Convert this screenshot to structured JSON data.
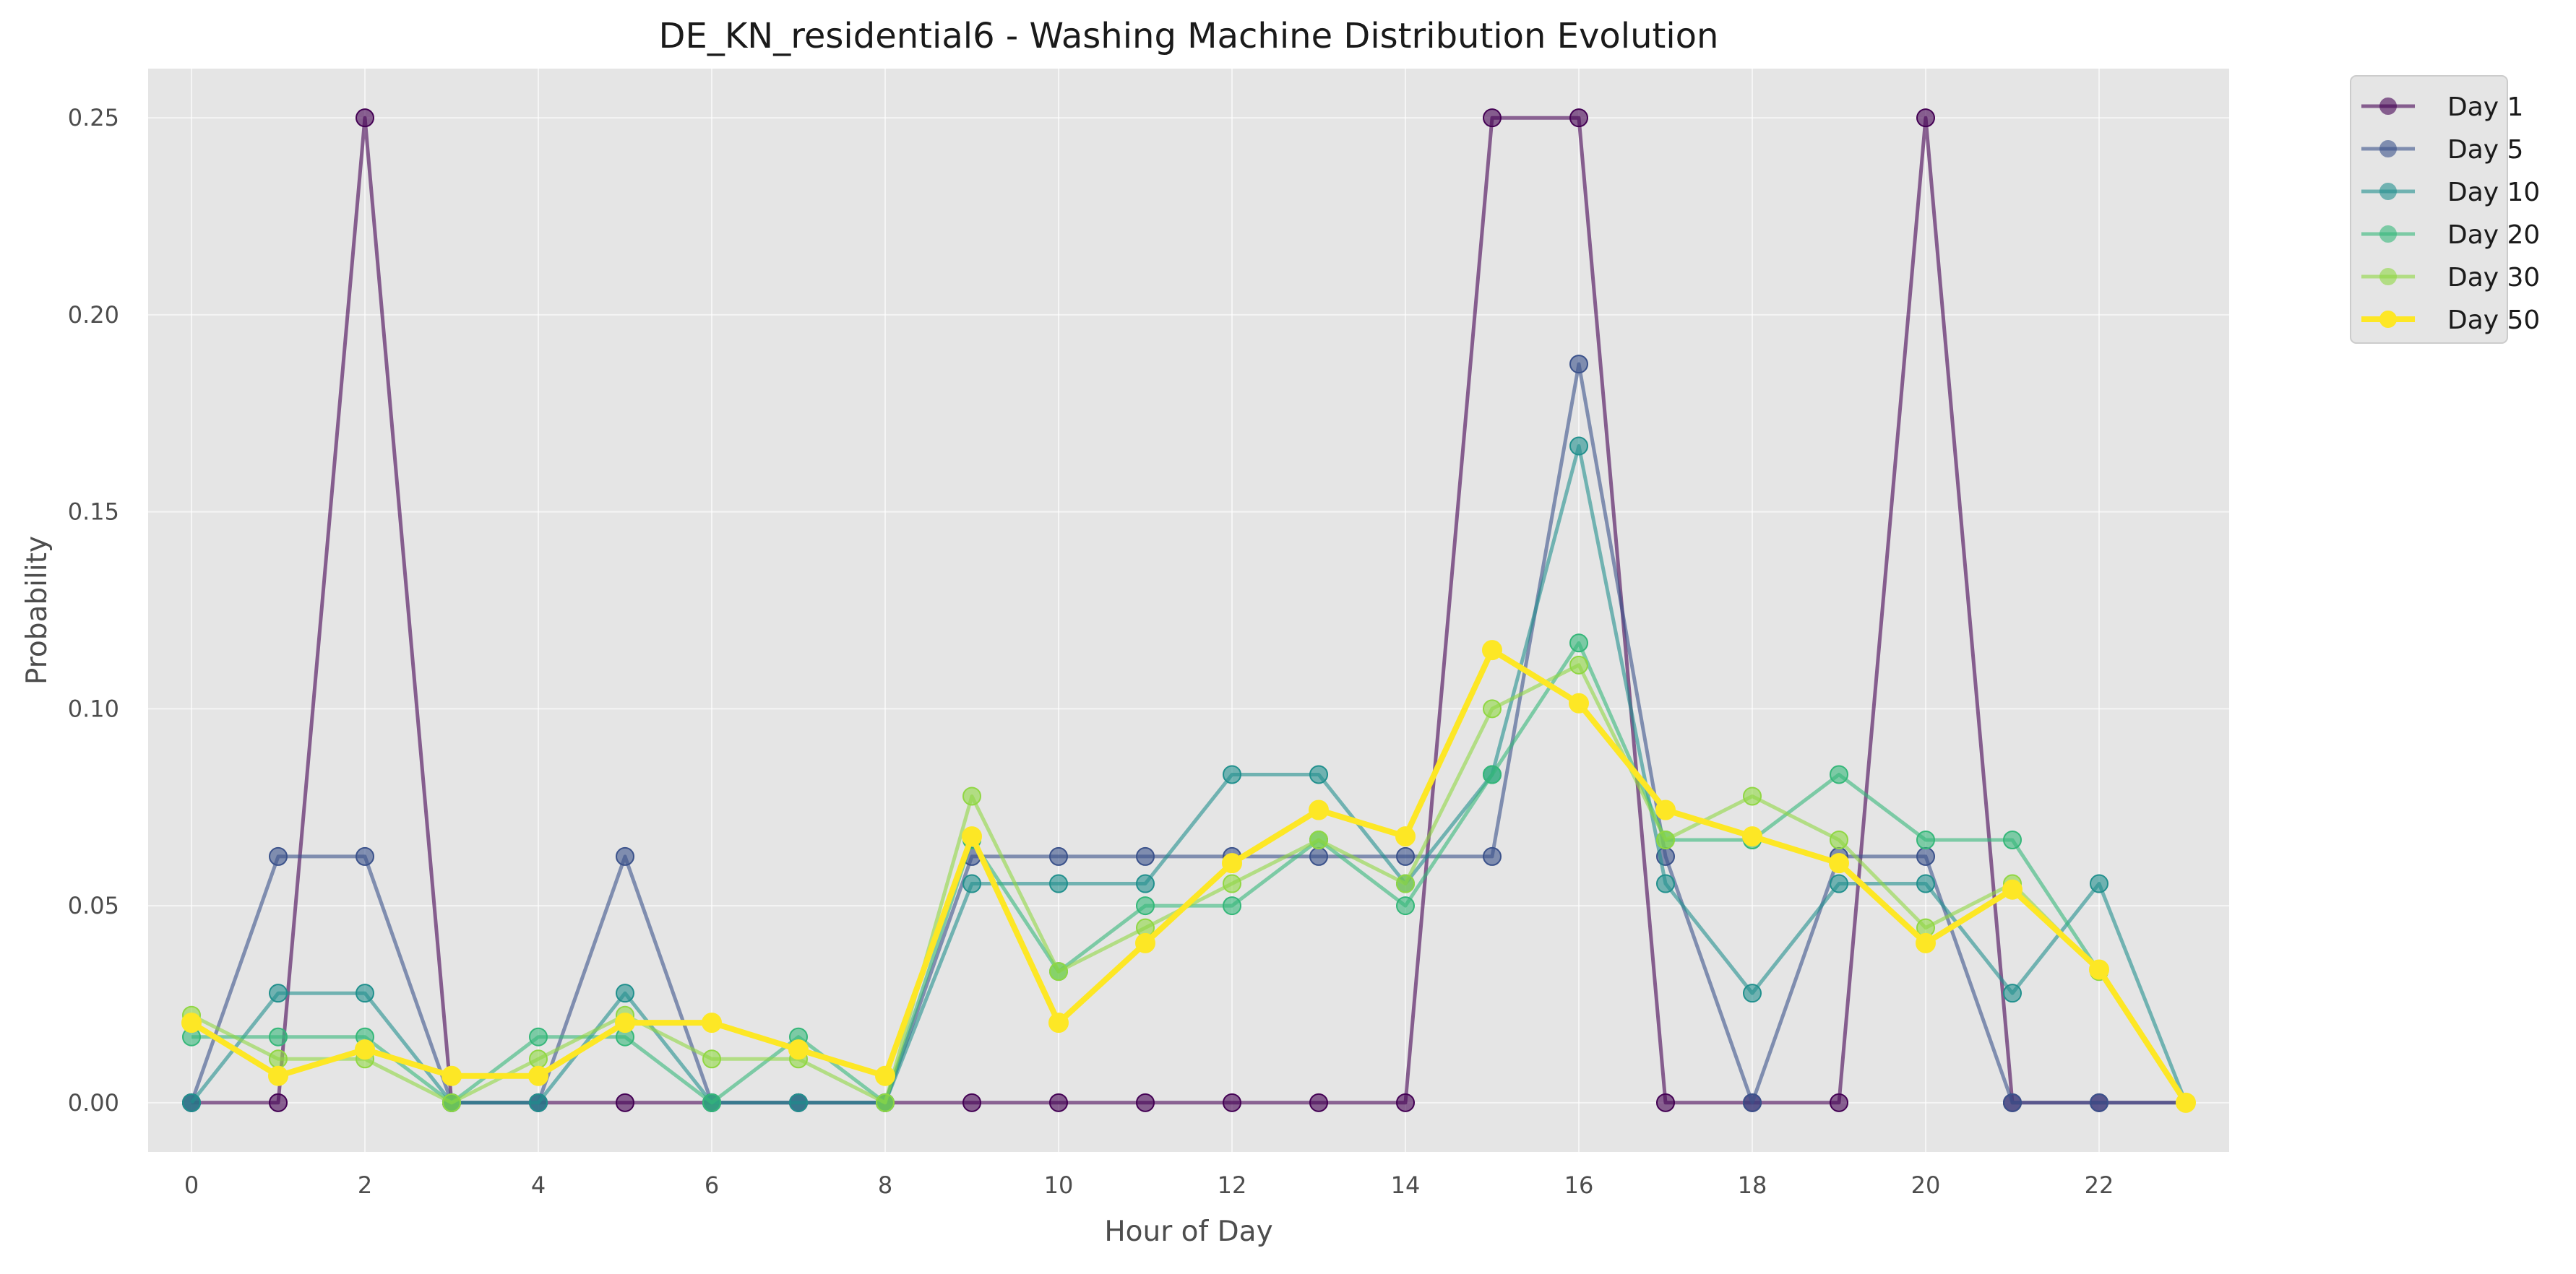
{
  "chart_data": {
    "type": "line",
    "title": "DE_KN_residential6 - Washing Machine Distribution Evolution",
    "xlabel": "Hour of Day",
    "ylabel": "Probability",
    "x": [
      0,
      1,
      2,
      3,
      4,
      5,
      6,
      7,
      8,
      9,
      10,
      11,
      12,
      13,
      14,
      15,
      16,
      17,
      18,
      19,
      20,
      21,
      22,
      23
    ],
    "xlim": [
      -0.5,
      23.5
    ],
    "ylim": [
      -0.0125,
      0.2625
    ],
    "x_ticks": [
      "0",
      "2",
      "4",
      "6",
      "8",
      "10",
      "12",
      "14",
      "16",
      "18",
      "20",
      "22"
    ],
    "y_ticks": [
      "0.00",
      "0.05",
      "0.10",
      "0.15",
      "0.20",
      "0.25"
    ],
    "grid": true,
    "legend_position": "outside-top-right",
    "series": [
      {
        "name": "Day 1",
        "color": "#440154",
        "values": [
          0,
          0,
          0.25,
          0,
          0,
          0,
          0,
          0,
          0,
          0,
          0,
          0,
          0,
          0,
          0,
          0.25,
          0.25,
          0,
          0,
          0,
          0.25,
          0,
          0,
          0
        ]
      },
      {
        "name": "Day 5",
        "color": "#3b528b",
        "values": [
          0,
          0.0625,
          0.0625,
          0,
          0,
          0.0625,
          0,
          0,
          0,
          0.0625,
          0.0625,
          0.0625,
          0.0625,
          0.0625,
          0.0625,
          0.0625,
          0.1875,
          0.0625,
          0,
          0.0625,
          0.0625,
          0,
          0,
          0
        ]
      },
      {
        "name": "Day 10",
        "color": "#21908d",
        "values": [
          0,
          0.0278,
          0.0278,
          0,
          0,
          0.0278,
          0,
          0,
          0,
          0.0556,
          0.0556,
          0.0556,
          0.0833,
          0.0833,
          0.0556,
          0.0833,
          0.1667,
          0.0556,
          0.0278,
          0.0556,
          0.0556,
          0.0278,
          0.0556,
          0
        ]
      },
      {
        "name": "Day 20",
        "color": "#35b779",
        "values": [
          0.0167,
          0.0167,
          0.0167,
          0,
          0.0167,
          0.0167,
          0,
          0.0167,
          0,
          0.0667,
          0.0333,
          0.05,
          0.05,
          0.0667,
          0.05,
          0.0833,
          0.1167,
          0.0667,
          0.0667,
          0.0833,
          0.0667,
          0.0667,
          0.0333,
          0
        ]
      },
      {
        "name": "Day 30",
        "color": "#90d743",
        "values": [
          0.0222,
          0.0111,
          0.0111,
          0,
          0.0111,
          0.0222,
          0.0111,
          0.0111,
          0,
          0.0778,
          0.0333,
          0.0444,
          0.0556,
          0.0667,
          0.0556,
          0.1,
          0.1111,
          0.0667,
          0.0778,
          0.0667,
          0.0444,
          0.0556,
          0.0333,
          0
        ]
      },
      {
        "name": "Day 50",
        "color": "#fde725",
        "values": [
          0.0203,
          0.0068,
          0.0135,
          0.0068,
          0.0068,
          0.0203,
          0.0203,
          0.0135,
          0.0068,
          0.0676,
          0.0203,
          0.0405,
          0.0608,
          0.0743,
          0.0676,
          0.1149,
          0.1014,
          0.0743,
          0.0676,
          0.0608,
          0.0405,
          0.0541,
          0.0338,
          0
        ]
      }
    ]
  }
}
